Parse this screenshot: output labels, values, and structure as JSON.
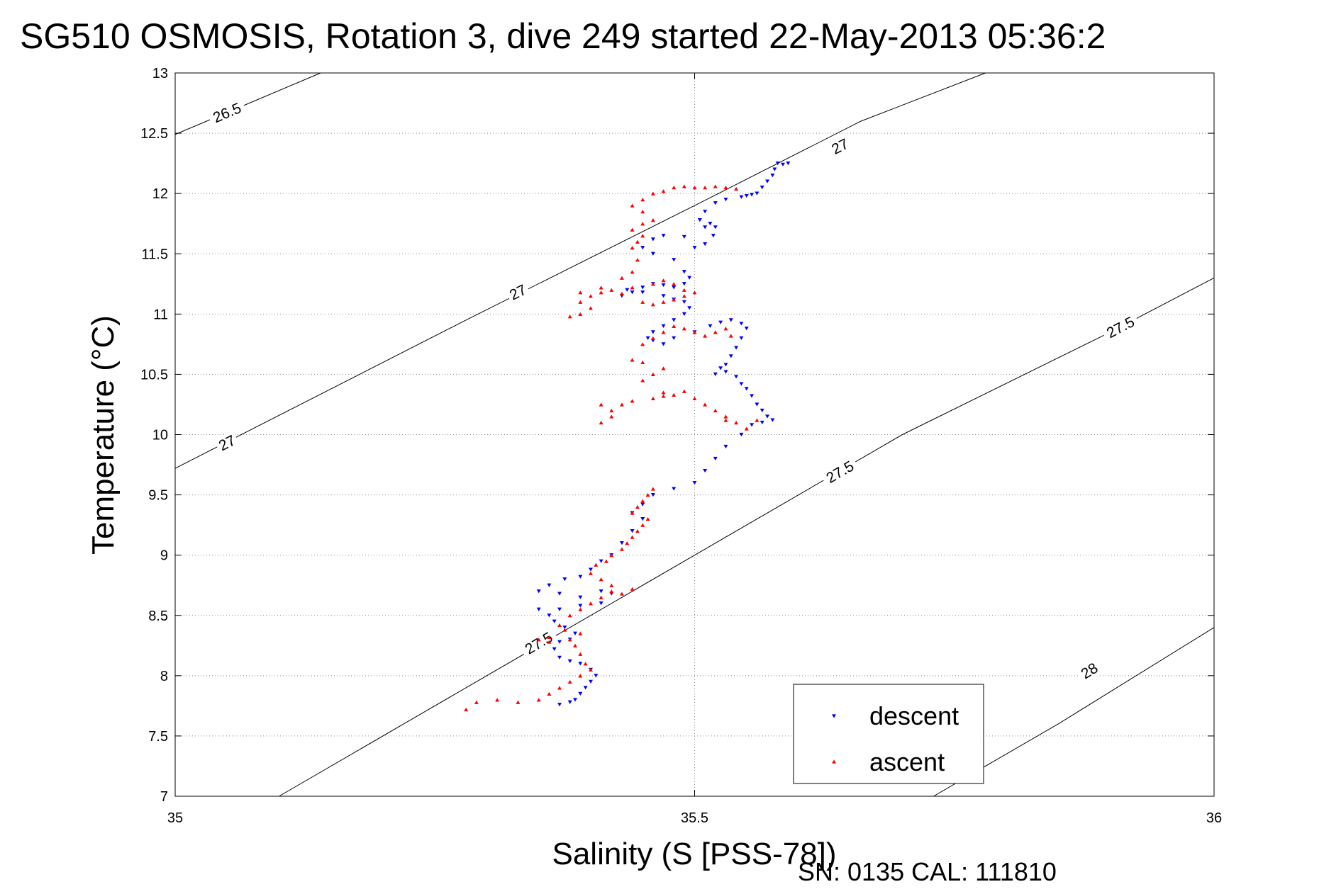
{
  "chart_data": {
    "type": "scatter",
    "title": "SG510 OSMOSIS, Rotation 3, dive 249 started 22-May-2013 05:36:2",
    "xlabel": "Salinity (S [PSS-78])",
    "ylabel": "Temperature (°C)",
    "xlim": [
      35,
      36
    ],
    "ylim": [
      7,
      13
    ],
    "x_ticks": [
      35,
      35.5,
      36
    ],
    "x_tick_labels": [
      "35",
      "35.5",
      "36"
    ],
    "y_ticks": [
      7,
      7.5,
      8,
      8.5,
      9,
      9.5,
      10,
      10.5,
      11,
      11.5,
      12,
      12.5,
      13
    ],
    "y_tick_labels": [
      "7",
      "7.5",
      "8",
      "8.5",
      "9",
      "9.5",
      "10",
      "10.5",
      "11",
      "11.5",
      "12",
      "12.5",
      "13"
    ],
    "grid": true,
    "legend_position": "bottom-right",
    "footer": "SN: 0135  CAL: 111810",
    "density_contours": [
      {
        "label": "26.5",
        "points": [
          [
            35.0,
            12.49
          ],
          [
            35.14,
            13.0
          ]
        ]
      },
      {
        "label": "27",
        "points": [
          [
            35.0,
            9.72
          ],
          [
            35.28,
            10.95
          ],
          [
            35.5,
            11.9
          ],
          [
            35.66,
            12.6
          ],
          [
            35.78,
            13.0
          ]
        ]
      },
      {
        "label": "27.5",
        "points": [
          [
            35.1,
            7.0
          ],
          [
            35.3,
            8.0
          ],
          [
            35.5,
            9.0
          ],
          [
            35.7,
            10.0
          ],
          [
            35.9,
            10.85
          ],
          [
            36.0,
            11.3
          ]
        ]
      },
      {
        "label": "28",
        "points": [
          [
            35.73,
            7.0
          ],
          [
            35.85,
            7.6
          ],
          [
            36.0,
            8.4
          ]
        ]
      }
    ],
    "contour_label_positions": [
      {
        "label": "26.5",
        "x": 35.05,
        "y": 12.67
      },
      {
        "label": "27",
        "x": 35.05,
        "y": 9.93
      },
      {
        "label": "27",
        "x": 35.33,
        "y": 11.18
      },
      {
        "label": "27",
        "x": 35.64,
        "y": 12.39
      },
      {
        "label": "27.5",
        "x": 35.35,
        "y": 8.27
      },
      {
        "label": "27.5",
        "x": 35.64,
        "y": 9.69
      },
      {
        "label": "27.5",
        "x": 35.91,
        "y": 10.89
      },
      {
        "label": "28",
        "x": 35.88,
        "y": 8.04
      }
    ],
    "series": [
      {
        "name": "descent",
        "color": "#0000ff",
        "marker": "triangle-down",
        "points": [
          [
            35.59,
            12.25
          ],
          [
            35.585,
            12.24
          ],
          [
            35.58,
            12.25
          ],
          [
            35.577,
            12.2
          ],
          [
            35.575,
            12.15
          ],
          [
            35.57,
            12.1
          ],
          [
            35.565,
            12.05
          ],
          [
            35.56,
            12.0
          ],
          [
            35.555,
            11.99
          ],
          [
            35.55,
            11.98
          ],
          [
            35.545,
            11.97
          ],
          [
            35.53,
            11.95
          ],
          [
            35.52,
            11.92
          ],
          [
            35.51,
            11.85
          ],
          [
            35.505,
            11.78
          ],
          [
            35.51,
            11.72
          ],
          [
            35.515,
            11.75
          ],
          [
            35.52,
            11.72
          ],
          [
            35.518,
            11.65
          ],
          [
            35.51,
            11.58
          ],
          [
            35.5,
            11.55
          ],
          [
            35.49,
            11.64
          ],
          [
            35.47,
            11.65
          ],
          [
            35.46,
            11.62
          ],
          [
            35.45,
            11.55
          ],
          [
            35.46,
            11.5
          ],
          [
            35.48,
            11.45
          ],
          [
            35.49,
            11.35
          ],
          [
            35.495,
            11.3
          ],
          [
            35.49,
            11.25
          ],
          [
            35.48,
            11.22
          ],
          [
            35.47,
            11.24
          ],
          [
            35.46,
            11.25
          ],
          [
            35.45,
            11.22
          ],
          [
            35.44,
            11.18
          ],
          [
            35.43,
            11.15
          ],
          [
            35.435,
            11.2
          ],
          [
            35.45,
            11.18
          ],
          [
            35.47,
            11.15
          ],
          [
            35.48,
            11.12
          ],
          [
            35.49,
            11.1
          ],
          [
            35.495,
            11.05
          ],
          [
            35.49,
            11.0
          ],
          [
            35.48,
            10.95
          ],
          [
            35.47,
            10.9
          ],
          [
            35.46,
            10.85
          ],
          [
            35.455,
            10.8
          ],
          [
            35.46,
            10.78
          ],
          [
            35.47,
            10.75
          ],
          [
            35.48,
            10.8
          ],
          [
            35.5,
            10.85
          ],
          [
            35.515,
            10.9
          ],
          [
            35.525,
            10.93
          ],
          [
            35.535,
            10.95
          ],
          [
            35.545,
            10.92
          ],
          [
            35.55,
            10.88
          ],
          [
            35.545,
            10.8
          ],
          [
            35.54,
            10.72
          ],
          [
            35.535,
            10.65
          ],
          [
            35.53,
            10.58
          ],
          [
            35.525,
            10.55
          ],
          [
            35.52,
            10.5
          ],
          [
            35.53,
            10.52
          ],
          [
            35.54,
            10.48
          ],
          [
            35.545,
            10.42
          ],
          [
            35.55,
            10.38
          ],
          [
            35.555,
            10.32
          ],
          [
            35.56,
            10.25
          ],
          [
            35.565,
            10.2
          ],
          [
            35.57,
            10.15
          ],
          [
            35.575,
            10.12
          ],
          [
            35.565,
            10.1
          ],
          [
            35.555,
            10.08
          ],
          [
            35.545,
            10.0
          ],
          [
            35.53,
            9.9
          ],
          [
            35.52,
            9.8
          ],
          [
            35.51,
            9.7
          ],
          [
            35.5,
            9.6
          ],
          [
            35.48,
            9.55
          ],
          [
            35.46,
            9.5
          ],
          [
            35.45,
            9.42
          ],
          [
            35.44,
            9.35
          ],
          [
            35.45,
            9.3
          ],
          [
            35.44,
            9.2
          ],
          [
            35.43,
            9.1
          ],
          [
            35.42,
            9.0
          ],
          [
            35.41,
            8.95
          ],
          [
            35.4,
            8.88
          ],
          [
            35.39,
            8.82
          ],
          [
            35.375,
            8.8
          ],
          [
            35.36,
            8.75
          ],
          [
            35.35,
            8.7
          ],
          [
            35.37,
            8.68
          ],
          [
            35.39,
            8.65
          ],
          [
            35.41,
            8.7
          ],
          [
            35.42,
            8.68
          ],
          [
            35.41,
            8.6
          ],
          [
            35.39,
            8.58
          ],
          [
            35.37,
            8.55
          ],
          [
            35.36,
            8.5
          ],
          [
            35.35,
            8.55
          ],
          [
            35.365,
            8.45
          ],
          [
            35.375,
            8.4
          ],
          [
            35.385,
            8.35
          ],
          [
            35.38,
            8.3
          ],
          [
            35.37,
            8.28
          ],
          [
            35.365,
            8.22
          ],
          [
            35.37,
            8.15
          ],
          [
            35.38,
            8.12
          ],
          [
            35.39,
            8.1
          ],
          [
            35.4,
            8.05
          ],
          [
            35.405,
            8.0
          ],
          [
            35.4,
            7.95
          ],
          [
            35.395,
            7.9
          ],
          [
            35.39,
            7.85
          ],
          [
            35.385,
            7.8
          ],
          [
            35.38,
            7.78
          ],
          [
            35.37,
            7.76
          ]
        ]
      },
      {
        "name": "ascent",
        "color": "#ff0000",
        "marker": "triangle-up",
        "points": [
          [
            35.28,
            7.72
          ],
          [
            35.29,
            7.78
          ],
          [
            35.31,
            7.8
          ],
          [
            35.33,
            7.78
          ],
          [
            35.35,
            7.8
          ],
          [
            35.36,
            7.85
          ],
          [
            35.37,
            7.9
          ],
          [
            35.38,
            7.95
          ],
          [
            35.39,
            8.0
          ],
          [
            35.4,
            8.05
          ],
          [
            35.395,
            8.1
          ],
          [
            35.39,
            8.18
          ],
          [
            35.385,
            8.25
          ],
          [
            35.38,
            8.3
          ],
          [
            35.39,
            8.35
          ],
          [
            35.375,
            8.38
          ],
          [
            35.36,
            8.32
          ],
          [
            35.35,
            8.3
          ],
          [
            35.36,
            8.28
          ],
          [
            35.37,
            8.42
          ],
          [
            35.38,
            8.5
          ],
          [
            35.39,
            8.55
          ],
          [
            35.4,
            8.6
          ],
          [
            35.41,
            8.65
          ],
          [
            35.42,
            8.7
          ],
          [
            35.43,
            8.68
          ],
          [
            35.44,
            8.72
          ],
          [
            35.42,
            8.75
          ],
          [
            35.41,
            8.8
          ],
          [
            35.4,
            8.85
          ],
          [
            35.405,
            8.92
          ],
          [
            35.415,
            8.95
          ],
          [
            35.42,
            9.0
          ],
          [
            35.43,
            9.05
          ],
          [
            35.435,
            9.1
          ],
          [
            35.44,
            9.15
          ],
          [
            35.445,
            9.2
          ],
          [
            35.45,
            9.25
          ],
          [
            35.455,
            9.3
          ],
          [
            35.44,
            9.35
          ],
          [
            35.445,
            9.4
          ],
          [
            35.45,
            9.45
          ],
          [
            35.455,
            9.5
          ],
          [
            35.46,
            9.55
          ],
          [
            35.41,
            10.1
          ],
          [
            35.42,
            10.2
          ],
          [
            35.43,
            10.25
          ],
          [
            35.44,
            10.28
          ],
          [
            35.42,
            10.15
          ],
          [
            35.41,
            10.25
          ],
          [
            35.46,
            10.3
          ],
          [
            35.47,
            10.35
          ],
          [
            35.48,
            10.33
          ],
          [
            35.49,
            10.36
          ],
          [
            35.5,
            10.3
          ],
          [
            35.51,
            10.25
          ],
          [
            35.52,
            10.2
          ],
          [
            35.53,
            10.15
          ],
          [
            35.54,
            10.1
          ],
          [
            35.55,
            10.05
          ],
          [
            35.56,
            10.12
          ],
          [
            35.45,
            10.45
          ],
          [
            35.46,
            10.5
          ],
          [
            35.47,
            10.55
          ],
          [
            35.45,
            10.6
          ],
          [
            35.44,
            10.62
          ],
          [
            35.45,
            10.75
          ],
          [
            35.46,
            10.8
          ],
          [
            35.47,
            10.85
          ],
          [
            35.48,
            10.9
          ],
          [
            35.49,
            10.88
          ],
          [
            35.5,
            10.85
          ],
          [
            35.51,
            10.82
          ],
          [
            35.52,
            10.85
          ],
          [
            35.53,
            10.88
          ],
          [
            35.535,
            10.82
          ],
          [
            35.38,
            10.98
          ],
          [
            35.39,
            11.0
          ],
          [
            35.4,
            11.05
          ],
          [
            35.39,
            11.1
          ],
          [
            35.4,
            11.15
          ],
          [
            35.41,
            11.18
          ],
          [
            35.42,
            11.2
          ],
          [
            35.44,
            11.22
          ],
          [
            35.46,
            11.25
          ],
          [
            35.47,
            11.28
          ],
          [
            35.48,
            11.25
          ],
          [
            35.49,
            11.2
          ],
          [
            35.5,
            11.18
          ],
          [
            35.49,
            11.15
          ],
          [
            35.48,
            11.12
          ],
          [
            35.47,
            11.1
          ],
          [
            35.46,
            11.08
          ],
          [
            35.45,
            11.1
          ],
          [
            35.43,
            11.3
          ],
          [
            35.44,
            11.35
          ],
          [
            35.445,
            11.45
          ],
          [
            35.44,
            11.55
          ],
          [
            35.445,
            11.6
          ],
          [
            35.45,
            11.65
          ],
          [
            35.44,
            11.7
          ],
          [
            35.45,
            11.75
          ],
          [
            35.46,
            11.78
          ],
          [
            35.45,
            11.85
          ],
          [
            35.44,
            11.9
          ],
          [
            35.45,
            11.95
          ],
          [
            35.46,
            12.0
          ],
          [
            35.47,
            12.02
          ],
          [
            35.48,
            12.05
          ],
          [
            35.49,
            12.06
          ],
          [
            35.5,
            12.05
          ],
          [
            35.51,
            12.05
          ],
          [
            35.52,
            12.06
          ],
          [
            35.53,
            12.05
          ],
          [
            35.54,
            12.04
          ],
          [
            35.39,
            11.18
          ],
          [
            35.41,
            11.22
          ],
          [
            35.43,
            11.17
          ],
          [
            35.47,
            10.32
          ],
          [
            35.53,
            10.12
          ]
        ]
      }
    ]
  }
}
